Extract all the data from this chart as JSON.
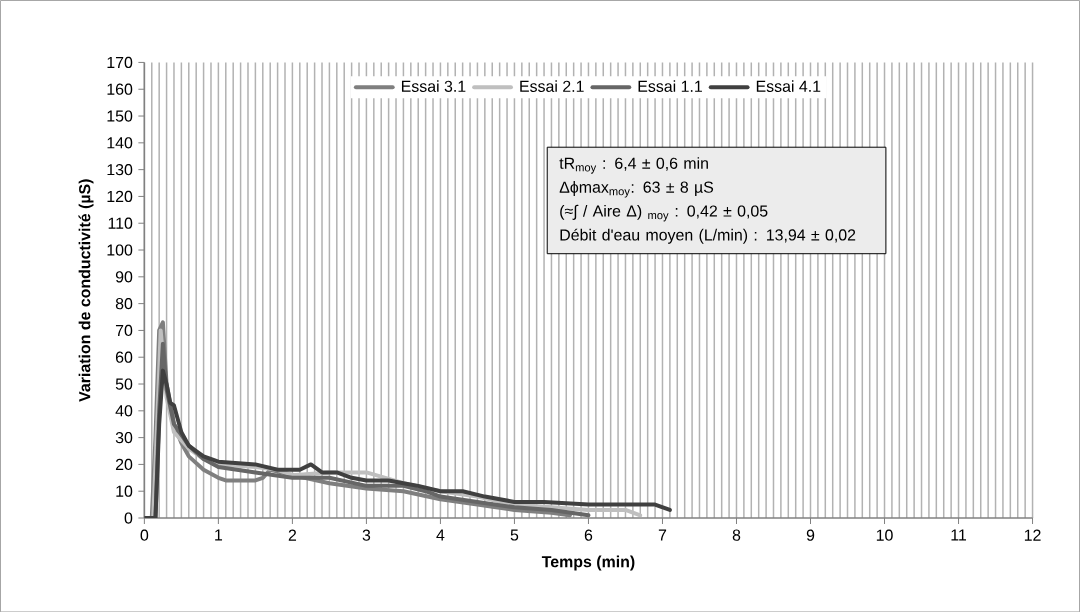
{
  "chart_data": {
    "type": "line",
    "xlabel": "Temps (min)",
    "ylabel": "Variation de conductivité  (µS)",
    "xlim": [
      0,
      12
    ],
    "xticks": [
      0,
      1,
      2,
      3,
      4,
      5,
      6,
      7,
      8,
      9,
      10,
      11,
      12
    ],
    "ylim": [
      0,
      170
    ],
    "yticks": [
      0,
      10,
      20,
      30,
      40,
      50,
      60,
      70,
      80,
      90,
      100,
      110,
      120,
      130,
      140,
      150,
      160,
      170
    ],
    "grid": "x",
    "legend": "top",
    "marker": "none",
    "line_style": "solid",
    "series": [
      {
        "name": "Essai 3.1",
        "color": "#7f7f7f",
        "x": [
          0,
          0.1,
          0.15,
          0.2,
          0.25,
          0.3,
          0.4,
          0.5,
          0.6,
          0.8,
          1.0,
          1.1,
          1.5,
          1.6,
          1.7,
          2.0,
          2.5,
          3.0,
          3.5,
          4.0,
          4.5,
          5.0,
          5.5,
          5.75
        ],
        "values": [
          0,
          0,
          30,
          70,
          73,
          50,
          35,
          28,
          23,
          18,
          15,
          14,
          14,
          15,
          18,
          16,
          13,
          11,
          10,
          7,
          5,
          3,
          2,
          1
        ]
      },
      {
        "name": "Essai 2.1",
        "color": "#bfbfbf",
        "x": [
          0,
          0.12,
          0.18,
          0.22,
          0.3,
          0.4,
          0.6,
          0.8,
          1.0,
          1.5,
          1.8,
          2.0,
          2.5,
          3.0,
          3.5,
          4.0,
          4.5,
          5.0,
          5.5,
          6.0,
          6.5,
          6.7
        ],
        "values": [
          0,
          0,
          40,
          70,
          45,
          32,
          26,
          22,
          20,
          19,
          18,
          16,
          17,
          17,
          13,
          10,
          8,
          5,
          4,
          3,
          3,
          1
        ]
      },
      {
        "name": "Essai 1.1",
        "color": "#666666",
        "x": [
          0,
          0.15,
          0.2,
          0.25,
          0.3,
          0.4,
          0.6,
          0.8,
          1.0,
          1.5,
          2.0,
          2.5,
          3.0,
          3.5,
          3.8,
          4.0,
          4.5,
          5.0,
          5.5,
          6.0
        ],
        "values": [
          0,
          0,
          40,
          65,
          48,
          35,
          27,
          22,
          19,
          17,
          15,
          15,
          12,
          12,
          10,
          8,
          6,
          4,
          3,
          1
        ]
      },
      {
        "name": "Essai 4.1",
        "color": "#404040",
        "x": [
          0,
          0.15,
          0.2,
          0.25,
          0.3,
          0.35,
          0.4,
          0.5,
          0.6,
          0.7,
          0.8,
          1.0,
          1.5,
          1.8,
          2.0,
          2.1,
          2.25,
          2.4,
          2.6,
          2.8,
          3.0,
          3.3,
          3.5,
          3.7,
          4.0,
          4.3,
          4.6,
          5.0,
          5.4,
          6.0,
          6.5,
          6.9,
          7.1
        ],
        "values": [
          0,
          0,
          35,
          55,
          50,
          43,
          42,
          32,
          27,
          25,
          23,
          21,
          20,
          18,
          18,
          18,
          20,
          17,
          17,
          15,
          14,
          14,
          13,
          12,
          10,
          10,
          8,
          6,
          6,
          5,
          5,
          5,
          3
        ]
      }
    ],
    "annotations": [
      "tR$_{moy}$ : 6,4 ± 0,6 min",
      "Δϕmax$_{moy}$: 63 ± 8 µS",
      "(≈∫ / Aire Δ) $_{moy}$ : 0,42 ± 0,05",
      "Débit d'eau moyen  (L/min) : 13,94 ± 0,02"
    ]
  }
}
